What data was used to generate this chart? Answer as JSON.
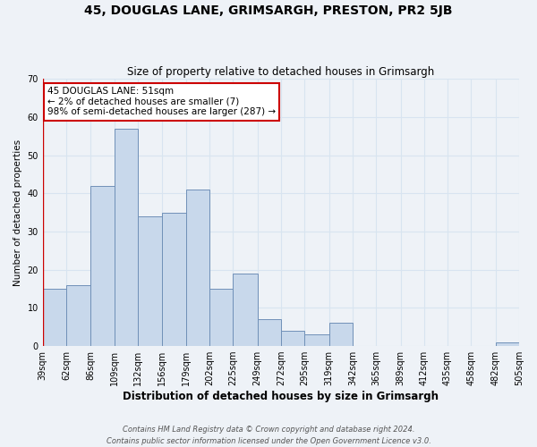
{
  "title": "45, DOUGLAS LANE, GRIMSARGH, PRESTON, PR2 5JB",
  "subtitle": "Size of property relative to detached houses in Grimsargh",
  "xlabel": "Distribution of detached houses by size in Grimsargh",
  "ylabel": "Number of detached properties",
  "footnote1": "Contains HM Land Registry data © Crown copyright and database right 2024.",
  "footnote2": "Contains public sector information licensed under the Open Government Licence v3.0.",
  "annotation_line1": "45 DOUGLAS LANE: 51sqm",
  "annotation_line2": "← 2% of detached houses are smaller (7)",
  "annotation_line3": "98% of semi-detached houses are larger (287) →",
  "bar_color": "#c8d8eb",
  "bar_edge_color": "#7090b8",
  "bins": [
    39,
    62,
    86,
    109,
    132,
    156,
    179,
    202,
    225,
    249,
    272,
    295,
    319,
    342,
    365,
    389,
    412,
    435,
    458,
    482,
    505
  ],
  "counts": [
    15,
    16,
    42,
    57,
    34,
    35,
    41,
    15,
    19,
    7,
    4,
    3,
    6,
    0,
    0,
    0,
    0,
    0,
    0,
    1
  ],
  "ylim": [
    0,
    70
  ],
  "yticks": [
    0,
    10,
    20,
    30,
    40,
    50,
    60,
    70
  ],
  "annotation_box_color": "#ffffff",
  "annotation_box_edge": "#cc0000",
  "background_color": "#eef2f7",
  "grid_color": "#d8e4f0",
  "title_fontsize": 10,
  "subtitle_fontsize": 8.5,
  "ylabel_fontsize": 7.5,
  "xlabel_fontsize": 8.5,
  "tick_fontsize": 7,
  "annotation_fontsize": 7.5,
  "footnote_fontsize": 6
}
